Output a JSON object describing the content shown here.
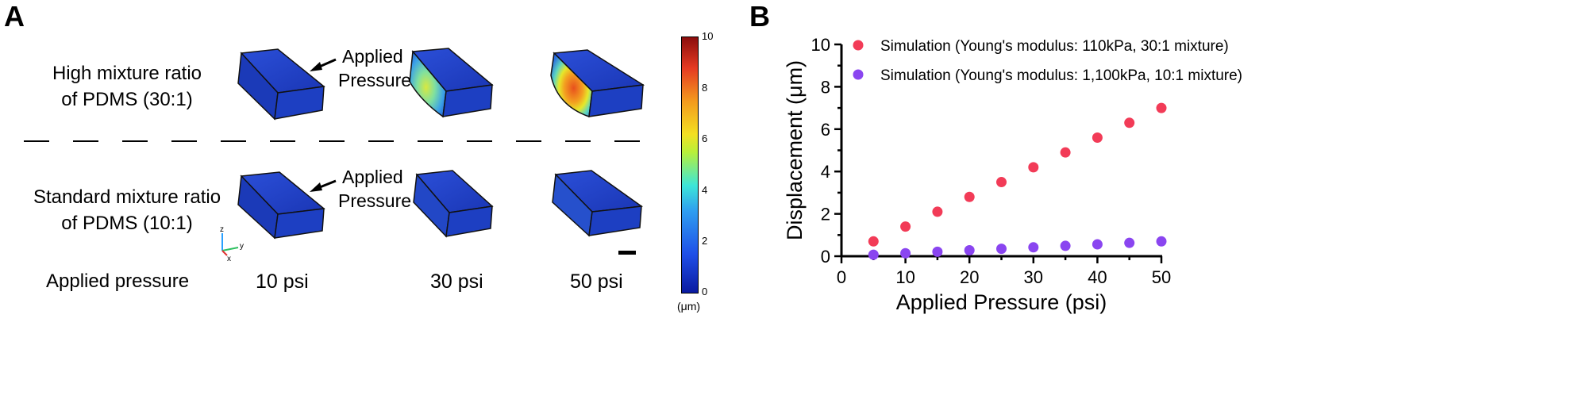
{
  "panel_a": {
    "letter": "A",
    "row_high": [
      "High mixture ratio",
      "of PDMS (30:1)"
    ],
    "row_std": [
      "Standard mixture ratio",
      "of PDMS (10:1)"
    ],
    "applied_label": [
      "Applied",
      "Pressure"
    ],
    "applied_pressure_label": "Applied pressure",
    "pressures": [
      "10 psi",
      "30 psi",
      "50 psi"
    ],
    "axes": {
      "z": "z",
      "y": "y",
      "x": "x"
    },
    "colorbar": {
      "ticks": [
        "10",
        "8",
        "6",
        "4",
        "2",
        "0"
      ],
      "unit": "(μm)"
    },
    "colors": {
      "block_blue": "#1e3fc0",
      "hot_red": "#d9381e"
    }
  },
  "panel_b": {
    "letter": "B"
  },
  "chart_data": {
    "type": "scatter",
    "xlabel": "Applied Pressure (psi)",
    "ylabel": "Displacement (μm)",
    "xlim": [
      0,
      50
    ],
    "ylim": [
      0,
      10
    ],
    "xticks": [
      "0",
      "10",
      "20",
      "30",
      "40",
      "50"
    ],
    "yticks": [
      "0",
      "2",
      "4",
      "6",
      "8",
      "10"
    ],
    "legend_position": "top",
    "series": [
      {
        "name": "Simulation (Young's modulus: 110kPa, 30:1 mixture)",
        "color": "#f23b57",
        "x": [
          5,
          10,
          15,
          20,
          25,
          30,
          35,
          40,
          45,
          50
        ],
        "y": [
          0.7,
          1.4,
          2.1,
          2.8,
          3.5,
          4.2,
          4.9,
          5.6,
          6.3,
          7.0
        ]
      },
      {
        "name": "Simulation (Young's modulus: 1,100kPa, 10:1 mixture)",
        "color": "#8a45f0",
        "x": [
          5,
          10,
          15,
          20,
          25,
          30,
          35,
          40,
          45,
          50
        ],
        "y": [
          0.07,
          0.14,
          0.21,
          0.28,
          0.35,
          0.42,
          0.49,
          0.56,
          0.63,
          0.7
        ]
      }
    ]
  }
}
